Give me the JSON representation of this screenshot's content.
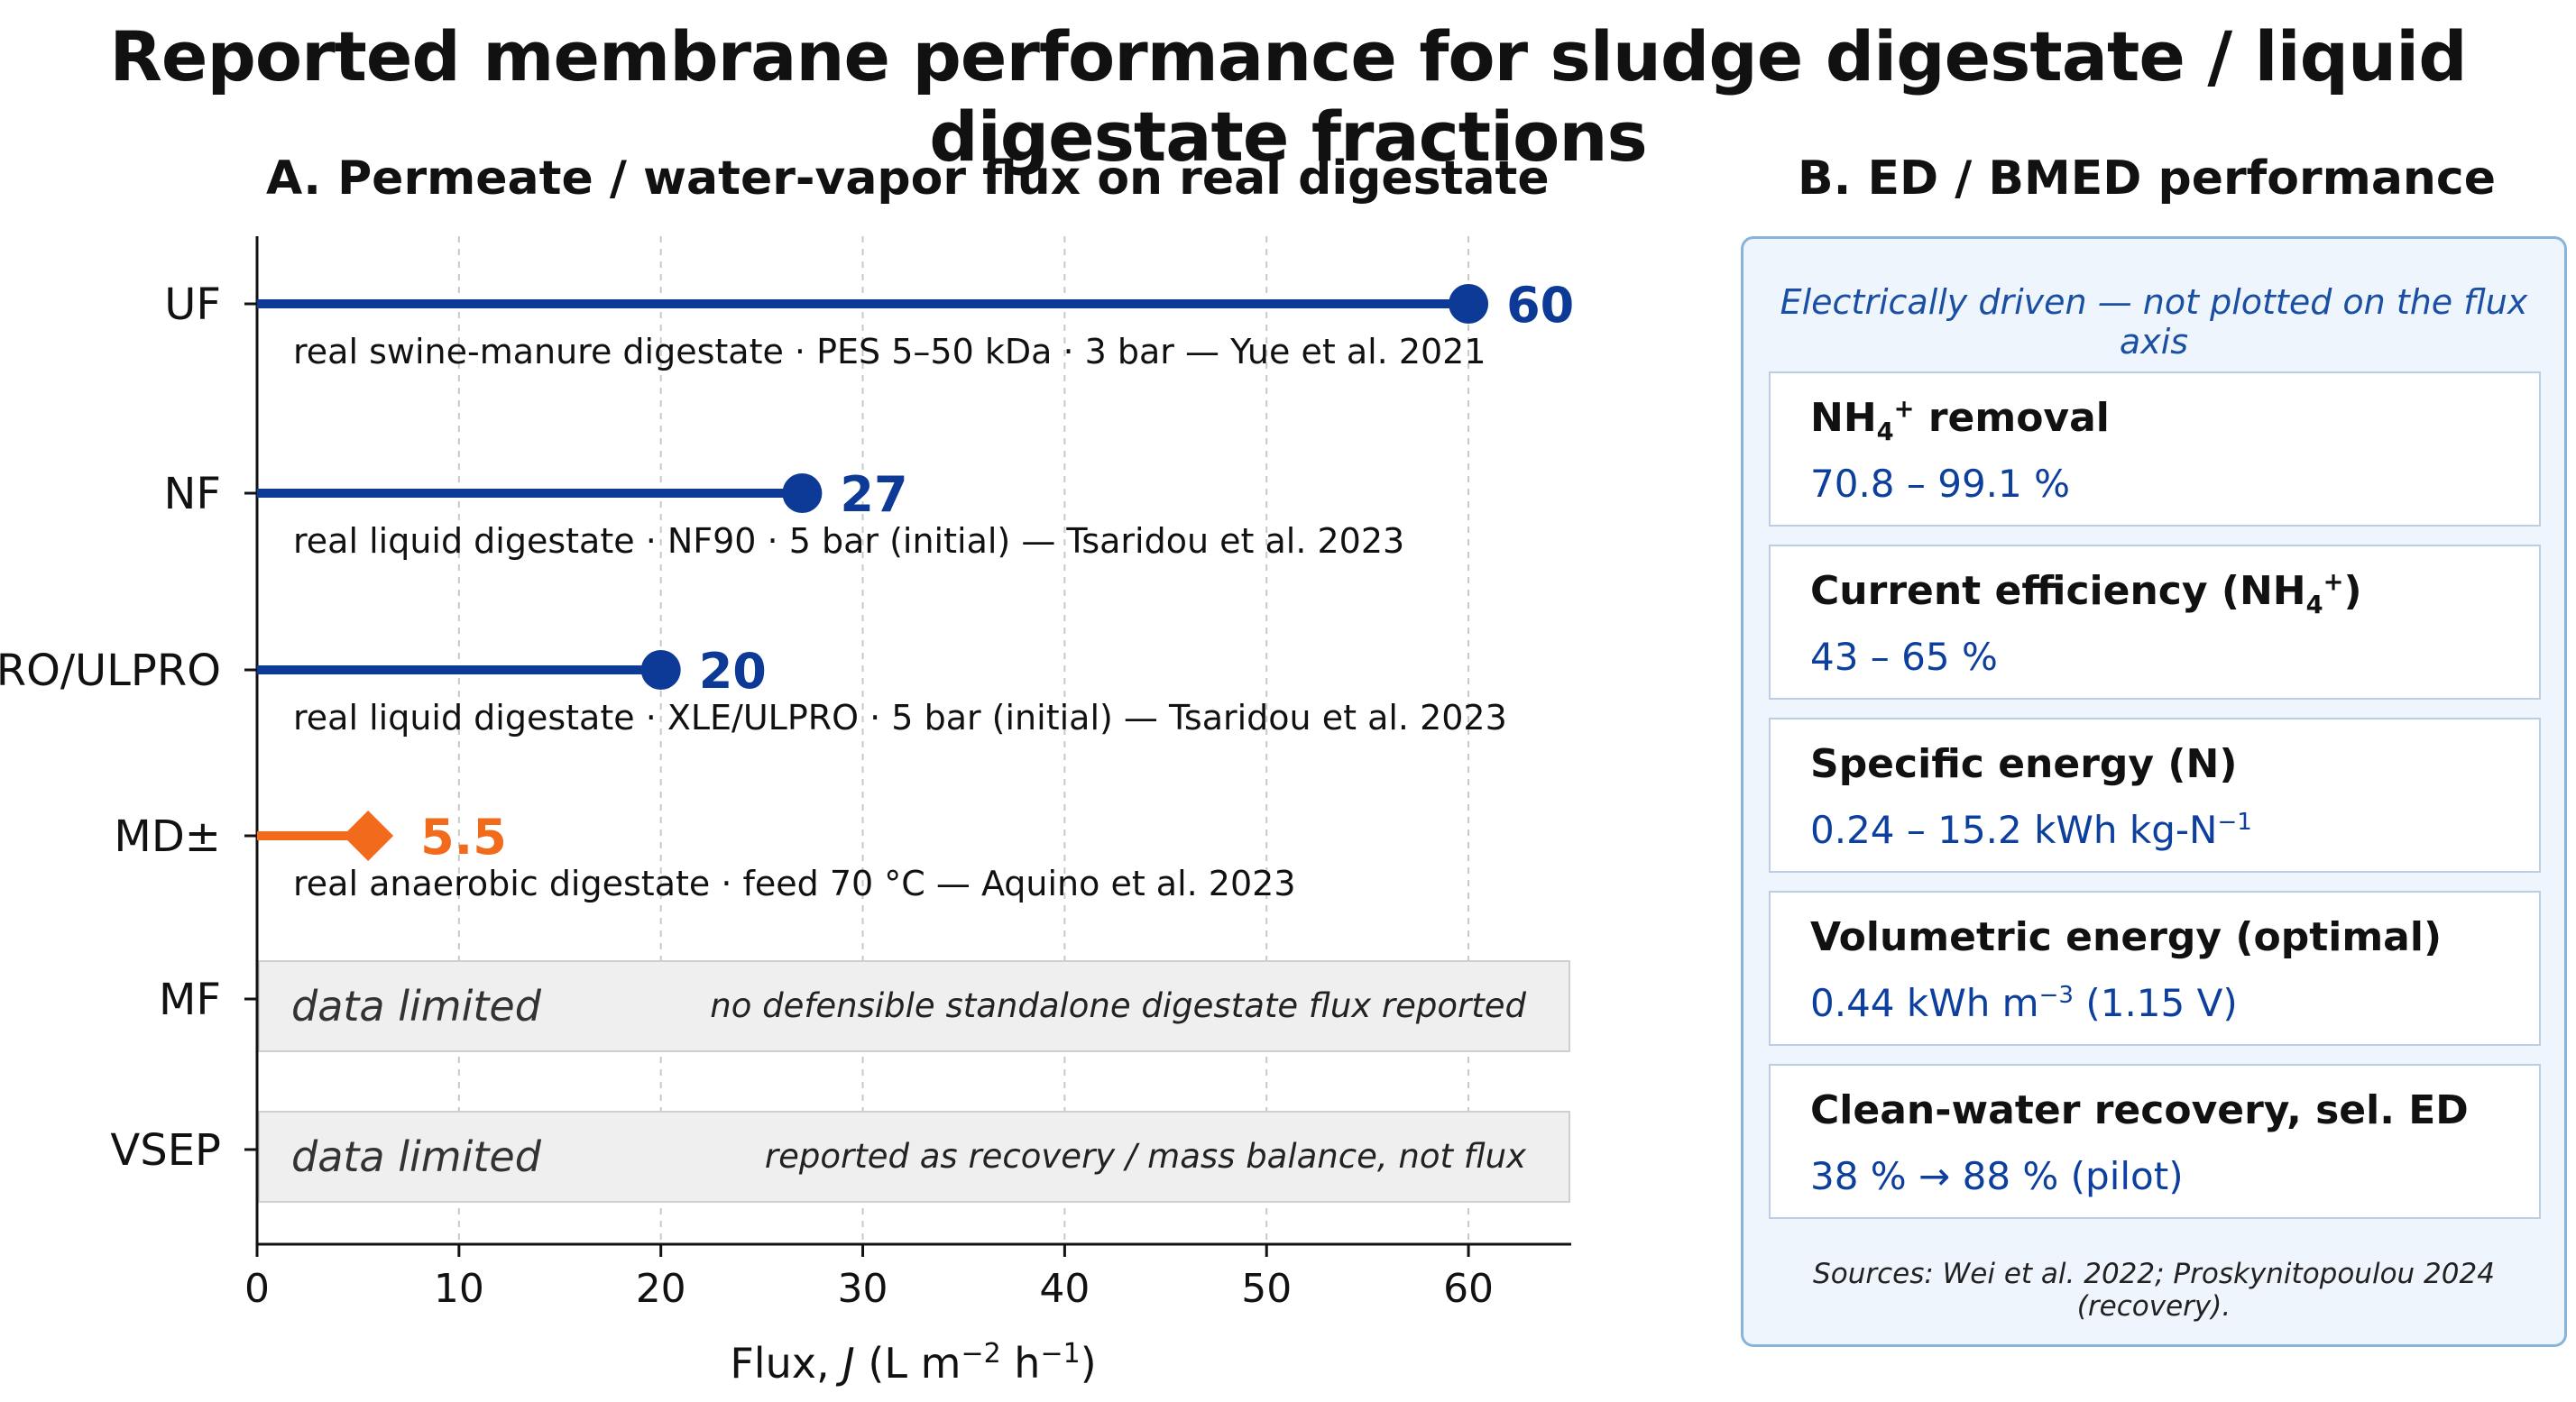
{
  "title": "Reported membrane performance for sludge digestate / liquid digestate fractions",
  "panel_a": {
    "title": "A. Permeate / water-vapor flux on real digestate"
  },
  "panel_b": {
    "title": "B. ED / BMED performance",
    "note": "Electrically driven — not plotted on the flux axis",
    "metrics": [
      {
        "label_pre": "NH",
        "label_sub": "4",
        "label_sup": "+",
        "label_post": " removal",
        "value": "70.8 – 99.1 %"
      },
      {
        "label_pre": "Current efficiency (NH",
        "label_sub": "4",
        "label_sup": "+",
        "label_post": ")",
        "value": "43 – 65 %"
      },
      {
        "label_pre": "Specific energy (N)",
        "label_sub": "",
        "label_sup": "",
        "label_post": "",
        "value_pre": "0.24 – 15.2 kWh kg-N",
        "value_sup": "−1",
        "value_post": ""
      },
      {
        "label_pre": "Volumetric energy (optimal)",
        "label_sub": "",
        "label_sup": "",
        "label_post": "",
        "value_pre": "0.44 kWh m",
        "value_sup": "−3",
        "value_post": " (1.15 V)"
      },
      {
        "label_pre": "Clean-water recovery, sel. ED",
        "label_sub": "",
        "label_sup": "",
        "label_post": "",
        "value": "38 % → 88 % (pilot)"
      }
    ],
    "sources": "Sources: Wei et al. 2022; Proskynitopoulou 2024 (recovery)."
  },
  "colors": {
    "primary": "#0d3a97",
    "accent": "#f26b1d",
    "limited_fill": "#efefef",
    "grid": "#c8c8c8"
  },
  "chart_data": {
    "type": "bar",
    "orientation": "horizontal",
    "title": "A. Permeate / water-vapor flux on real digestate",
    "xlabel_pre": "Flux, ",
    "xlabel_var": "J",
    "xlabel_unit_pre": " (L m",
    "xlabel_sup1": "−2",
    "xlabel_mid": " h",
    "xlabel_sup2": "−1",
    "xlabel_post": ")",
    "xlim": [
      0,
      65
    ],
    "xticks": [
      0,
      10,
      20,
      30,
      40,
      50,
      60
    ],
    "grid": "vertical dashed",
    "rows": [
      {
        "category": "UF",
        "value": 60,
        "value_label": "60",
        "marker": "circle",
        "color": "#0d3a97",
        "annotation": "real swine-manure digestate  · PES 5–50 kDa · 3 bar — Yue et al. 2021"
      },
      {
        "category": "NF",
        "value": 27,
        "value_label": "27",
        "marker": "circle",
        "color": "#0d3a97",
        "annotation": "real liquid digestate  · NF90 · 5 bar (initial) — Tsaridou et al. 2023"
      },
      {
        "category": "RO/ULPRO",
        "value": 20,
        "value_label": "20",
        "marker": "circle",
        "color": "#0d3a97",
        "annotation": "real liquid digestate  · XLE/ULPRO · 5 bar (initial) — Tsaridou et al. 2023"
      },
      {
        "category": "MD±",
        "value": 5.5,
        "value_label": "5.5",
        "marker": "diamond",
        "color": "#f26b1d",
        "annotation": "real anaerobic digestate · feed 70 °C — Aquino et al. 2023"
      },
      {
        "category": "MF",
        "value": null,
        "limited_label": "data limited",
        "limited_note": "no defensible standalone digestate flux reported"
      },
      {
        "category": "VSEP",
        "value": null,
        "limited_label": "data limited",
        "limited_note": "reported as recovery / mass balance, not flux"
      }
    ]
  }
}
